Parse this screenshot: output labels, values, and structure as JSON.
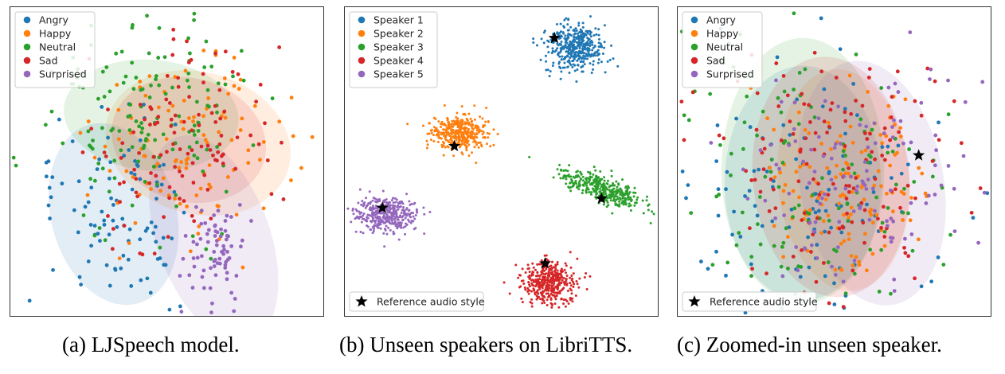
{
  "colors": {
    "blue": "#1f77b4",
    "orange": "#ff7f0e",
    "green": "#2ca02c",
    "red": "#d62728",
    "purple": "#9467bd",
    "star": "#000000",
    "frame": "#333333"
  },
  "reference_label": "Reference audio style",
  "chart_data": [
    {
      "type": "scatter",
      "caption": "(a) LJSpeech model.",
      "legend_position": "top-left",
      "has_reference_star": false,
      "series": [
        {
          "name": "Angry",
          "color": "#1f77b4",
          "center": [
            0.33,
            0.66
          ],
          "spread": [
            0.12,
            0.15
          ],
          "count": 95,
          "ellipse": {
            "center": [
              0.33,
              0.67
            ],
            "radii": [
              0.2,
              0.3
            ],
            "angle": -15
          }
        },
        {
          "name": "Happy",
          "color": "#ff7f0e",
          "center": [
            0.58,
            0.45
          ],
          "spread": [
            0.17,
            0.14
          ],
          "count": 110,
          "ellipse": {
            "center": [
              0.6,
              0.44
            ],
            "radii": [
              0.3,
              0.23
            ],
            "angle": 15
          }
        },
        {
          "name": "Neutral",
          "color": "#2ca02c",
          "center": [
            0.44,
            0.35
          ],
          "spread": [
            0.17,
            0.17
          ],
          "count": 150,
          "ellipse": {
            "center": [
              0.45,
              0.35
            ],
            "radii": [
              0.28,
              0.18
            ],
            "angle": 5
          }
        },
        {
          "name": "Sad",
          "color": "#d62728",
          "center": [
            0.56,
            0.44
          ],
          "spread": [
            0.14,
            0.16
          ],
          "count": 115,
          "ellipse": {
            "center": [
              0.57,
              0.43
            ],
            "radii": [
              0.25,
              0.2
            ],
            "angle": 15
          }
        },
        {
          "name": "Surprised",
          "color": "#9467bd",
          "center": [
            0.66,
            0.8
          ],
          "spread": [
            0.06,
            0.08
          ],
          "count": 75,
          "ellipse": {
            "center": [
              0.65,
              0.75
            ],
            "radii": [
              0.18,
              0.35
            ],
            "angle": -20
          }
        }
      ],
      "stars": []
    },
    {
      "type": "scatter",
      "caption": "(b) Unseen speakers on LibriTTS.",
      "legend_position": "top-left",
      "has_reference_star": true,
      "series": [
        {
          "name": "Speaker 1",
          "color": "#1f77b4",
          "center": [
            0.74,
            0.13
          ],
          "spread": [
            0.045,
            0.038
          ],
          "count": 420
        },
        {
          "name": "Speaker 2",
          "color": "#ff7f0e",
          "center": [
            0.37,
            0.41
          ],
          "spread": [
            0.045,
            0.03
          ],
          "count": 380
        },
        {
          "name": "Speaker 3",
          "color": "#2ca02c",
          "center": [
            0.83,
            0.59
          ],
          "spread": [
            0.065,
            0.022
          ],
          "count": 380,
          "tilt": 0.35
        },
        {
          "name": "Speaker 4",
          "color": "#d62728",
          "center": [
            0.65,
            0.89
          ],
          "spread": [
            0.045,
            0.035
          ],
          "count": 420
        },
        {
          "name": "Speaker 5",
          "color": "#9467bd",
          "center": [
            0.13,
            0.67
          ],
          "spread": [
            0.048,
            0.028
          ],
          "count": 380
        }
      ],
      "stars": [
        [
          0.67,
          0.1
        ],
        [
          0.35,
          0.45
        ],
        [
          0.82,
          0.62
        ],
        [
          0.64,
          0.83
        ],
        [
          0.12,
          0.65
        ]
      ]
    },
    {
      "type": "scatter",
      "caption": "(c) Zoomed-in unseen speaker.",
      "legend_position": "top-left",
      "has_reference_star": true,
      "series": [
        {
          "name": "Angry",
          "color": "#1f77b4",
          "center": [
            0.4,
            0.6
          ],
          "spread": [
            0.22,
            0.2
          ],
          "count": 120,
          "ellipse": {
            "center": [
              0.4,
              0.57
            ],
            "radii": [
              0.25,
              0.38
            ],
            "angle": 0
          }
        },
        {
          "name": "Happy",
          "color": "#ff7f0e",
          "center": [
            0.53,
            0.57
          ],
          "spread": [
            0.13,
            0.16
          ],
          "count": 130,
          "ellipse": {
            "center": [
              0.53,
              0.56
            ],
            "radii": [
              0.21,
              0.36
            ],
            "angle": -5
          }
        },
        {
          "name": "Neutral",
          "color": "#2ca02c",
          "center": [
            0.42,
            0.58
          ],
          "spread": [
            0.24,
            0.22
          ],
          "count": 130,
          "ellipse": {
            "center": [
              0.4,
              0.53
            ],
            "radii": [
              0.26,
              0.43
            ],
            "angle": 0
          }
        },
        {
          "name": "Sad",
          "color": "#d62728",
          "center": [
            0.5,
            0.55
          ],
          "spread": [
            0.2,
            0.2
          ],
          "count": 140,
          "ellipse": {
            "center": [
              0.49,
              0.55
            ],
            "radii": [
              0.25,
              0.39
            ],
            "angle": -5
          }
        },
        {
          "name": "Surprised",
          "color": "#9467bd",
          "center": [
            0.6,
            0.55
          ],
          "spread": [
            0.19,
            0.2
          ],
          "count": 120,
          "ellipse": {
            "center": [
              0.62,
              0.57
            ],
            "radii": [
              0.23,
              0.4
            ],
            "angle": -10
          }
        }
      ],
      "stars": [
        [
          0.77,
          0.48
        ]
      ]
    }
  ]
}
